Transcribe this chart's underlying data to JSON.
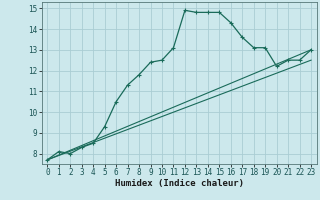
{
  "xlabel": "Humidex (Indice chaleur)",
  "ylabel": "",
  "background_color": "#cce8ec",
  "grid_color": "#aacdd4",
  "line_color": "#1a6b5a",
  "xlim": [
    -0.5,
    23.5
  ],
  "ylim": [
    7.5,
    15.3
  ],
  "xticks": [
    0,
    1,
    2,
    3,
    4,
    5,
    6,
    7,
    8,
    9,
    10,
    11,
    12,
    13,
    14,
    15,
    16,
    17,
    18,
    19,
    20,
    21,
    22,
    23
  ],
  "yticks": [
    8,
    9,
    10,
    11,
    12,
    13,
    14,
    15
  ],
  "curve_x": [
    0,
    1,
    2,
    3,
    4,
    5,
    6,
    7,
    8,
    9,
    10,
    11,
    12,
    13,
    14,
    15,
    16,
    17,
    18,
    19,
    20,
    21,
    22,
    23
  ],
  "curve_y": [
    7.7,
    8.1,
    8.0,
    8.3,
    8.5,
    9.3,
    10.5,
    11.3,
    11.8,
    12.4,
    12.5,
    13.1,
    14.9,
    14.8,
    14.8,
    14.8,
    14.3,
    13.6,
    13.1,
    13.1,
    12.2,
    12.5,
    12.5,
    13.0
  ],
  "line1_x": [
    0,
    23
  ],
  "line1_y": [
    7.7,
    13.0
  ],
  "line2_x": [
    0,
    23
  ],
  "line2_y": [
    7.7,
    12.5
  ]
}
